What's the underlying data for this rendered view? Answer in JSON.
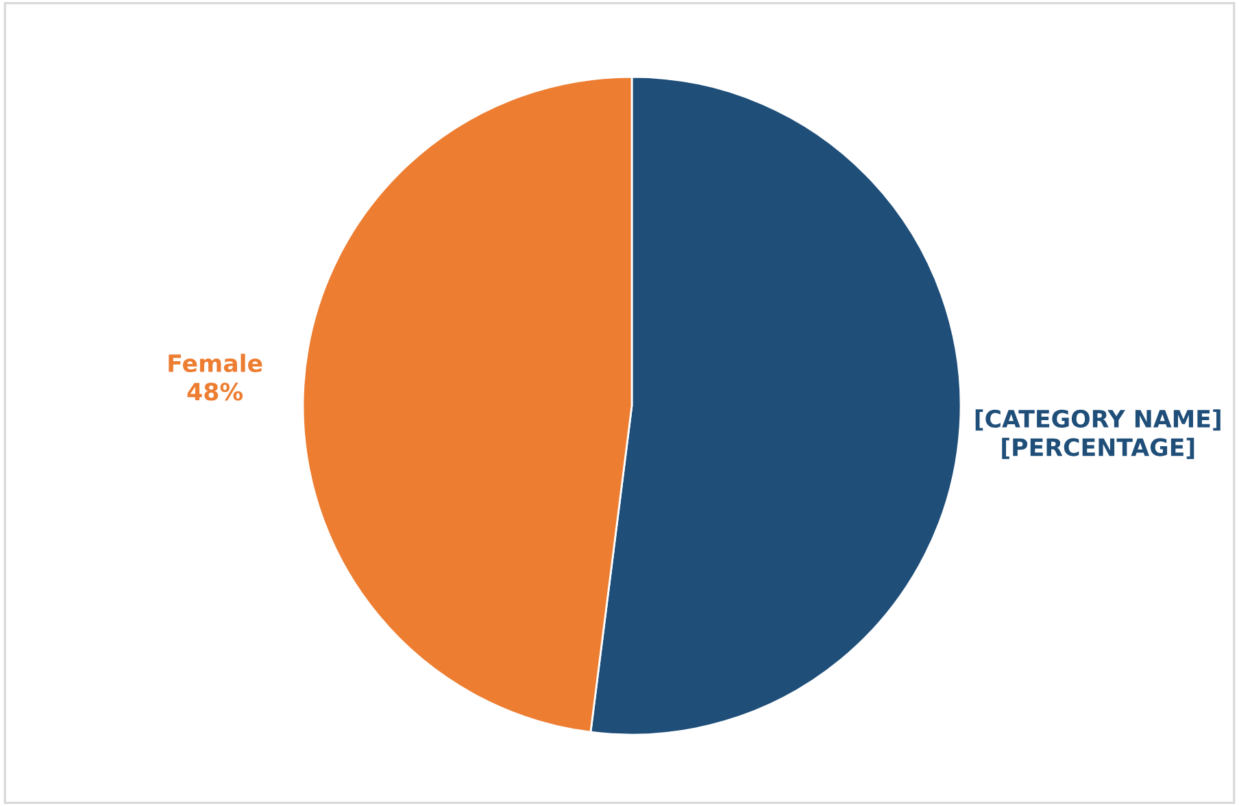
{
  "chart_data": {
    "type": "pie",
    "categories": [
      "[CATEGORY NAME]",
      "Female"
    ],
    "values": [
      52,
      48
    ],
    "value_labels": [
      "[PERCENTAGE]",
      "48%"
    ],
    "colors": [
      "#1f4e79",
      "#ed7d31"
    ]
  }
}
